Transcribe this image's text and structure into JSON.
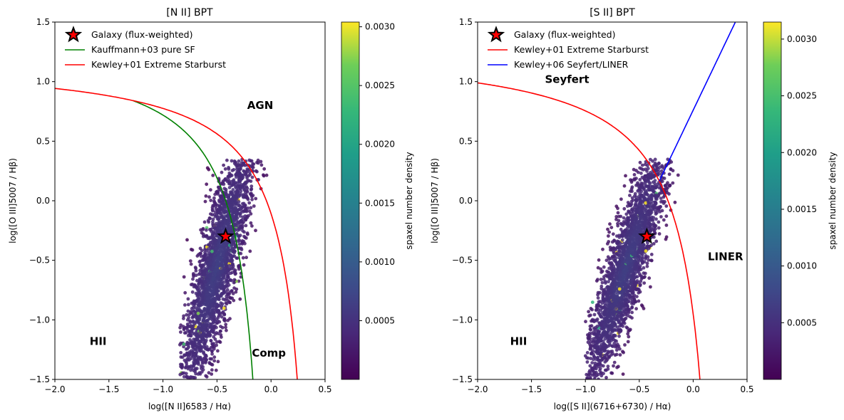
{
  "figure": {
    "panels": [
      {
        "title": "[N II] BPT",
        "xlabel": "log([N II]6583 / Hα)",
        "ylabel": "log([O III]5007 / Hβ)",
        "colorbar_label": "spaxel number density"
      },
      {
        "title": "[S II] BPT",
        "xlabel": "log([S II](6716+6730) / Hα)",
        "ylabel": "log([O III]5007 / Hβ)",
        "colorbar_label": "spaxel number density"
      }
    ]
  },
  "chart_data": [
    {
      "type": "scatter",
      "title": "[N II] BPT",
      "xlabel": "log([N II]6583 / Hα)",
      "ylabel": "log([O III]5007 / Hβ)",
      "xlim": [
        -2.0,
        0.5
      ],
      "ylim": [
        -1.5,
        1.5
      ],
      "xticks": [
        -2.0,
        -1.5,
        -1.0,
        -0.5,
        0.0,
        0.5
      ],
      "xtick_labels": [
        "−2.0",
        "−1.5",
        "−1.0",
        "−0.5",
        "0.0",
        "0.5"
      ],
      "yticks": [
        -1.5,
        -1.0,
        -0.5,
        0.0,
        0.5,
        1.0,
        1.5
      ],
      "ytick_labels": [
        "−1.5",
        "−1.0",
        "−0.5",
        "0.0",
        "0.5",
        "1.0",
        "1.5"
      ],
      "grid": false,
      "legend_position": "top-left",
      "legend": [
        {
          "label": "Galaxy (flux-weighted)",
          "marker": "star",
          "color": "#ff0000"
        },
        {
          "label": "Kauffmann+03 pure SF",
          "marker": "line",
          "color": "#008000"
        },
        {
          "label": "Kewley+01 Extreme Starburst",
          "marker": "line",
          "color": "#ff0000"
        }
      ],
      "galaxy_point": {
        "x": -0.42,
        "y": -0.3
      },
      "lines": [
        {
          "name": "Kauffmann+03 pure SF",
          "color": "#008000",
          "equation": "0.61/(x-0.05)+1.3",
          "x_range": [
            -1.28,
            -0.15
          ]
        },
        {
          "name": "Kewley+01 Extreme Starburst",
          "color": "#ff0000",
          "equation": "0.61/(x-0.47)+1.19",
          "x_range": [
            -2.0,
            0.245
          ]
        }
      ],
      "spaxel_cloud": {
        "description": "density-coloured spaxel points",
        "center": {
          "x": -0.5,
          "y": -0.55
        },
        "slope": 2.0,
        "extent": {
          "x": [
            -0.85,
            0.1
          ],
          "y": [
            -1.5,
            0.35
          ]
        }
      },
      "region_labels": [
        {
          "text": "AGN",
          "x": -0.1,
          "y": 0.8
        },
        {
          "text": "HII",
          "x": -1.6,
          "y": -1.18
        },
        {
          "text": "Comp",
          "x": -0.02,
          "y": -1.28
        }
      ],
      "colorbar": {
        "label": "spaxel number density",
        "range": [
          0.0,
          0.00304
        ],
        "ticks": [
          0.0005,
          0.001,
          0.0015,
          0.002,
          0.0025,
          0.003
        ],
        "tick_labels": [
          "0.0005",
          "0.0010",
          "0.0015",
          "0.0020",
          "0.0025",
          "0.0030"
        ],
        "colormap": "viridis"
      }
    },
    {
      "type": "scatter",
      "title": "[S II] BPT",
      "xlabel": "log([S II](6716+6730) / Hα)",
      "ylabel": "log([O III]5007 / Hβ)",
      "xlim": [
        -2.0,
        0.5
      ],
      "ylim": [
        -1.5,
        1.5
      ],
      "xticks": [
        -2.0,
        -1.5,
        -1.0,
        -0.5,
        0.0,
        0.5
      ],
      "xtick_labels": [
        "−2.0",
        "−1.5",
        "−1.0",
        "−0.5",
        "0.0",
        "0.5"
      ],
      "yticks": [
        -1.5,
        -1.0,
        -0.5,
        0.0,
        0.5,
        1.0,
        1.5
      ],
      "ytick_labels": [
        "−1.5",
        "−1.0",
        "−0.5",
        "0.0",
        "0.5",
        "1.0",
        "1.5"
      ],
      "grid": false,
      "legend_position": "top-left",
      "legend": [
        {
          "label": "Galaxy (flux-weighted)",
          "marker": "star",
          "color": "#ff0000"
        },
        {
          "label": "Kewley+01 Extreme Starburst",
          "marker": "line",
          "color": "#ff0000"
        },
        {
          "label": "Kewley+06 Seyfert/LINER",
          "marker": "line",
          "color": "#0000ff"
        }
      ],
      "galaxy_point": {
        "x": -0.43,
        "y": -0.3
      },
      "lines": [
        {
          "name": "Kewley+01 Extreme Starburst",
          "color": "#ff0000",
          "equation": "0.72/(x-0.32)+1.30",
          "x_range": [
            -2.0,
            0.07
          ]
        },
        {
          "name": "Kewley+06 Seyfert/LINER",
          "color": "#0000ff",
          "equation": "1.89x+0.76",
          "x_range": [
            -0.315,
            0.39
          ]
        }
      ],
      "spaxel_cloud": {
        "description": "density-coloured spaxel points",
        "center": {
          "x": -0.62,
          "y": -0.55
        },
        "slope": 1.6,
        "extent": {
          "x": [
            -1.0,
            0.0
          ],
          "y": [
            -1.5,
            0.35
          ]
        }
      },
      "region_labels": [
        {
          "text": "Seyfert",
          "x": -1.17,
          "y": 1.02
        },
        {
          "text": "LINER",
          "x": 0.3,
          "y": -0.47
        },
        {
          "text": "HII",
          "x": -1.62,
          "y": -1.18
        }
      ],
      "colorbar": {
        "label": "spaxel number density",
        "range": [
          0.0,
          0.00315
        ],
        "ticks": [
          0.0005,
          0.001,
          0.0015,
          0.002,
          0.0025,
          0.003
        ],
        "tick_labels": [
          "0.0005",
          "0.0010",
          "0.0015",
          "0.0020",
          "0.0025",
          "0.0030"
        ],
        "colormap": "viridis"
      }
    }
  ]
}
